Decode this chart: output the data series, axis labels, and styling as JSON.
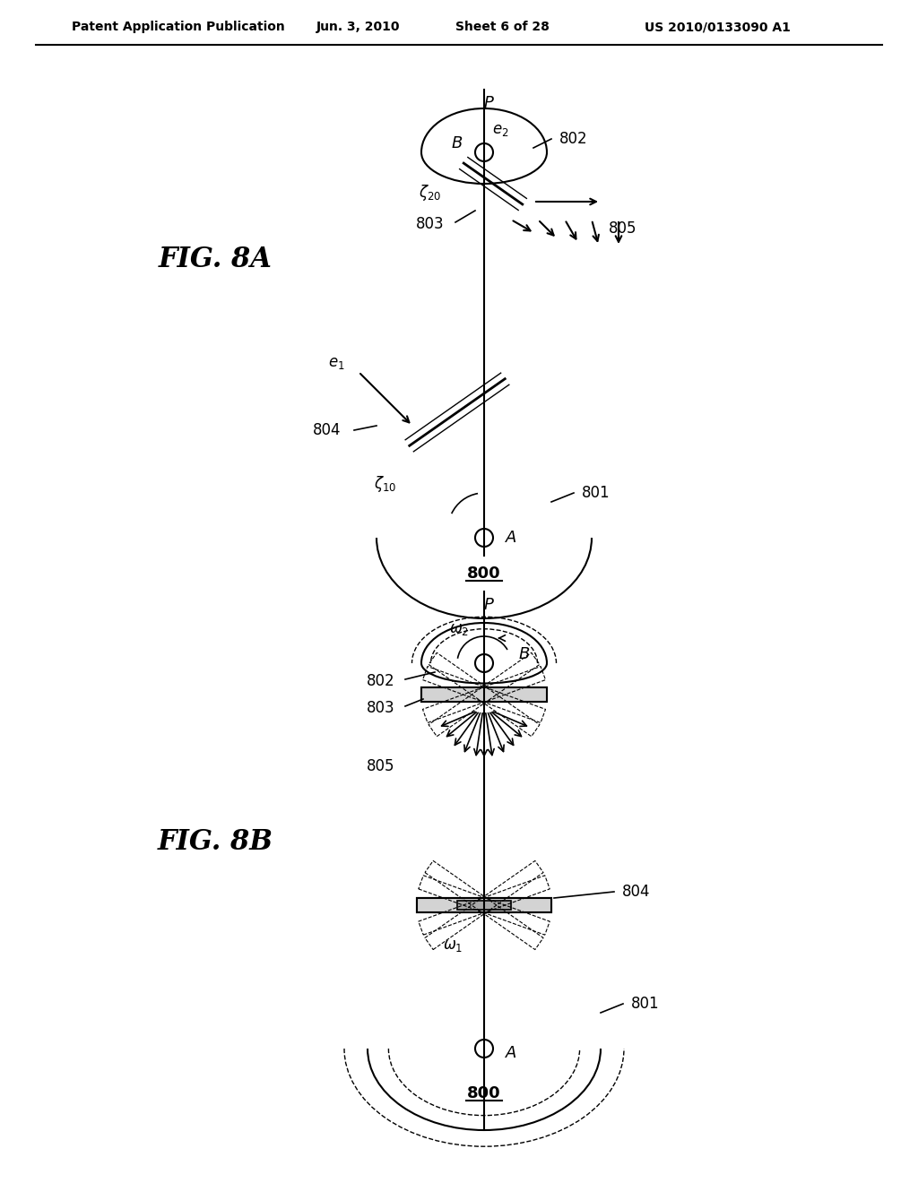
{
  "bg_color": "#ffffff",
  "header_text": "Patent Application Publication",
  "header_date": "Jun. 3, 2010",
  "header_sheet": "Sheet 6 of 28",
  "header_patent": "US 2010/0133090 A1",
  "fig8a_label": "FIG. 8A",
  "fig8b_label": "FIG. 8B"
}
